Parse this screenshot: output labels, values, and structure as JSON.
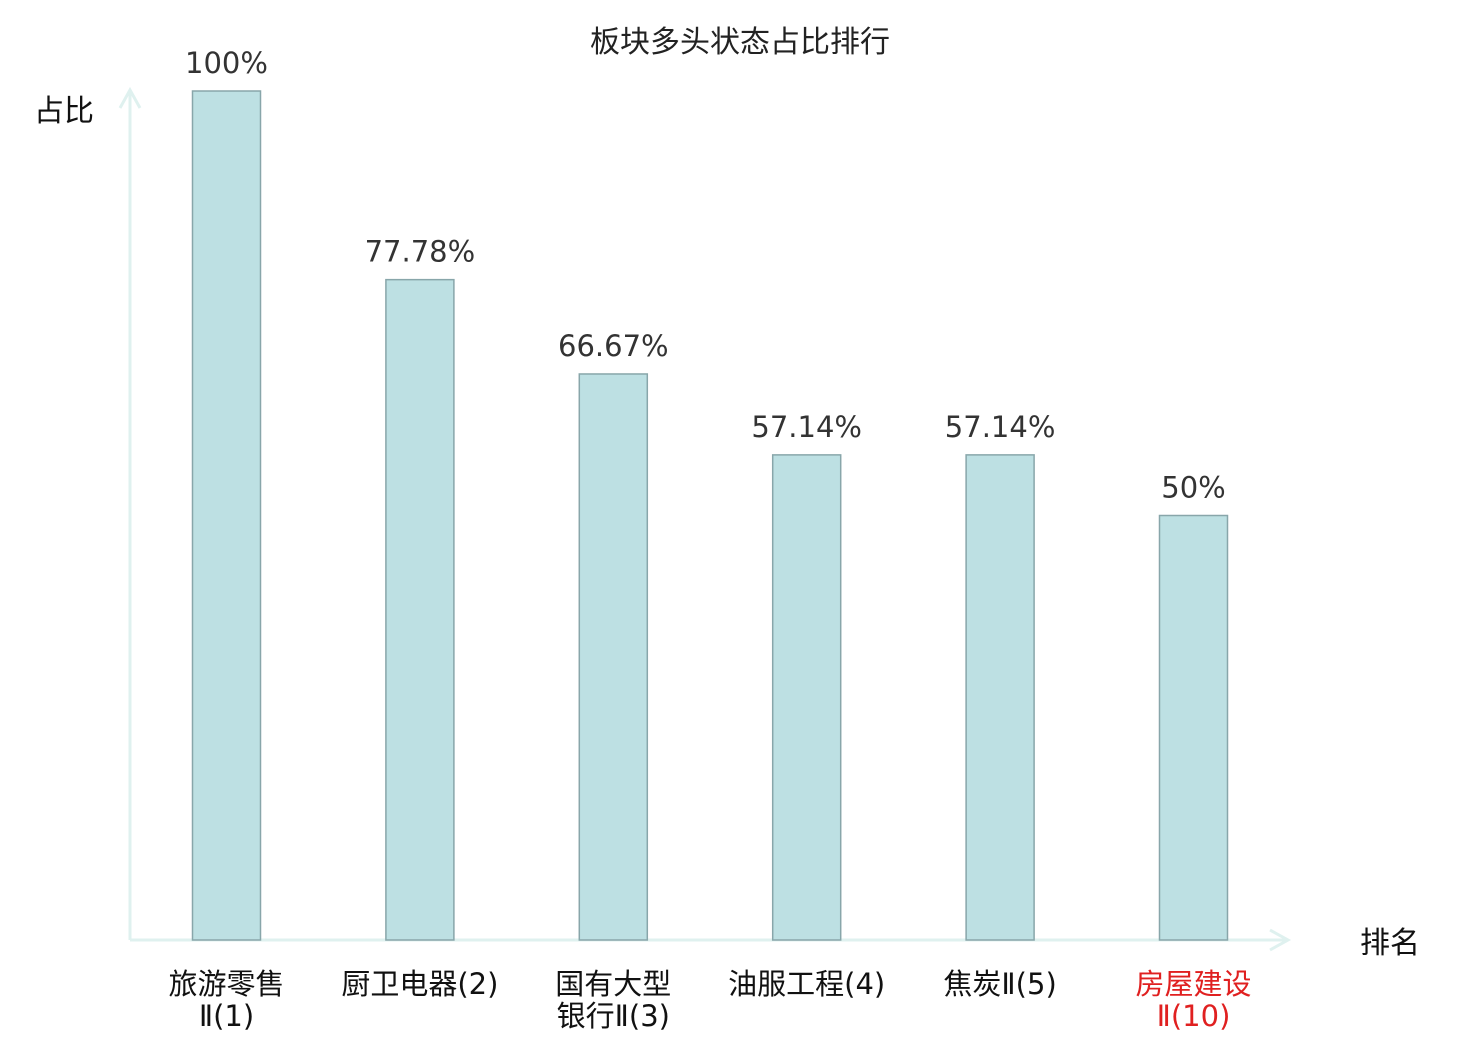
{
  "chart_data": {
    "type": "bar",
    "title": "板块多头状态占比排行",
    "xlabel": "排名",
    "ylabel": "占比",
    "ylim": [
      0,
      100
    ],
    "grid": false,
    "value_unit": "%",
    "categories": [
      [
        "旅游零售",
        "Ⅱ(1)"
      ],
      [
        "厨卫电器(2)"
      ],
      [
        "国有大型",
        "银行Ⅱ(3)"
      ],
      [
        "油服工程(4)"
      ],
      [
        "焦炭Ⅱ(5)"
      ],
      [
        "房屋建设",
        "Ⅱ(10)"
      ]
    ],
    "highlight_index": 5,
    "values": [
      100,
      77.78,
      66.67,
      57.14,
      57.14,
      50
    ],
    "value_labels": [
      "100%",
      "77.78%",
      "66.67%",
      "57.14%",
      "57.14%",
      "50%"
    ],
    "colors": {
      "bar_fill": "#bde0e3",
      "bar_stroke": "#88a6aa",
      "axis": "#dff1ef",
      "label_text": "#333333",
      "title_text": "#222222",
      "highlight_text": "#e02020",
      "category_text": "#111111"
    }
  }
}
